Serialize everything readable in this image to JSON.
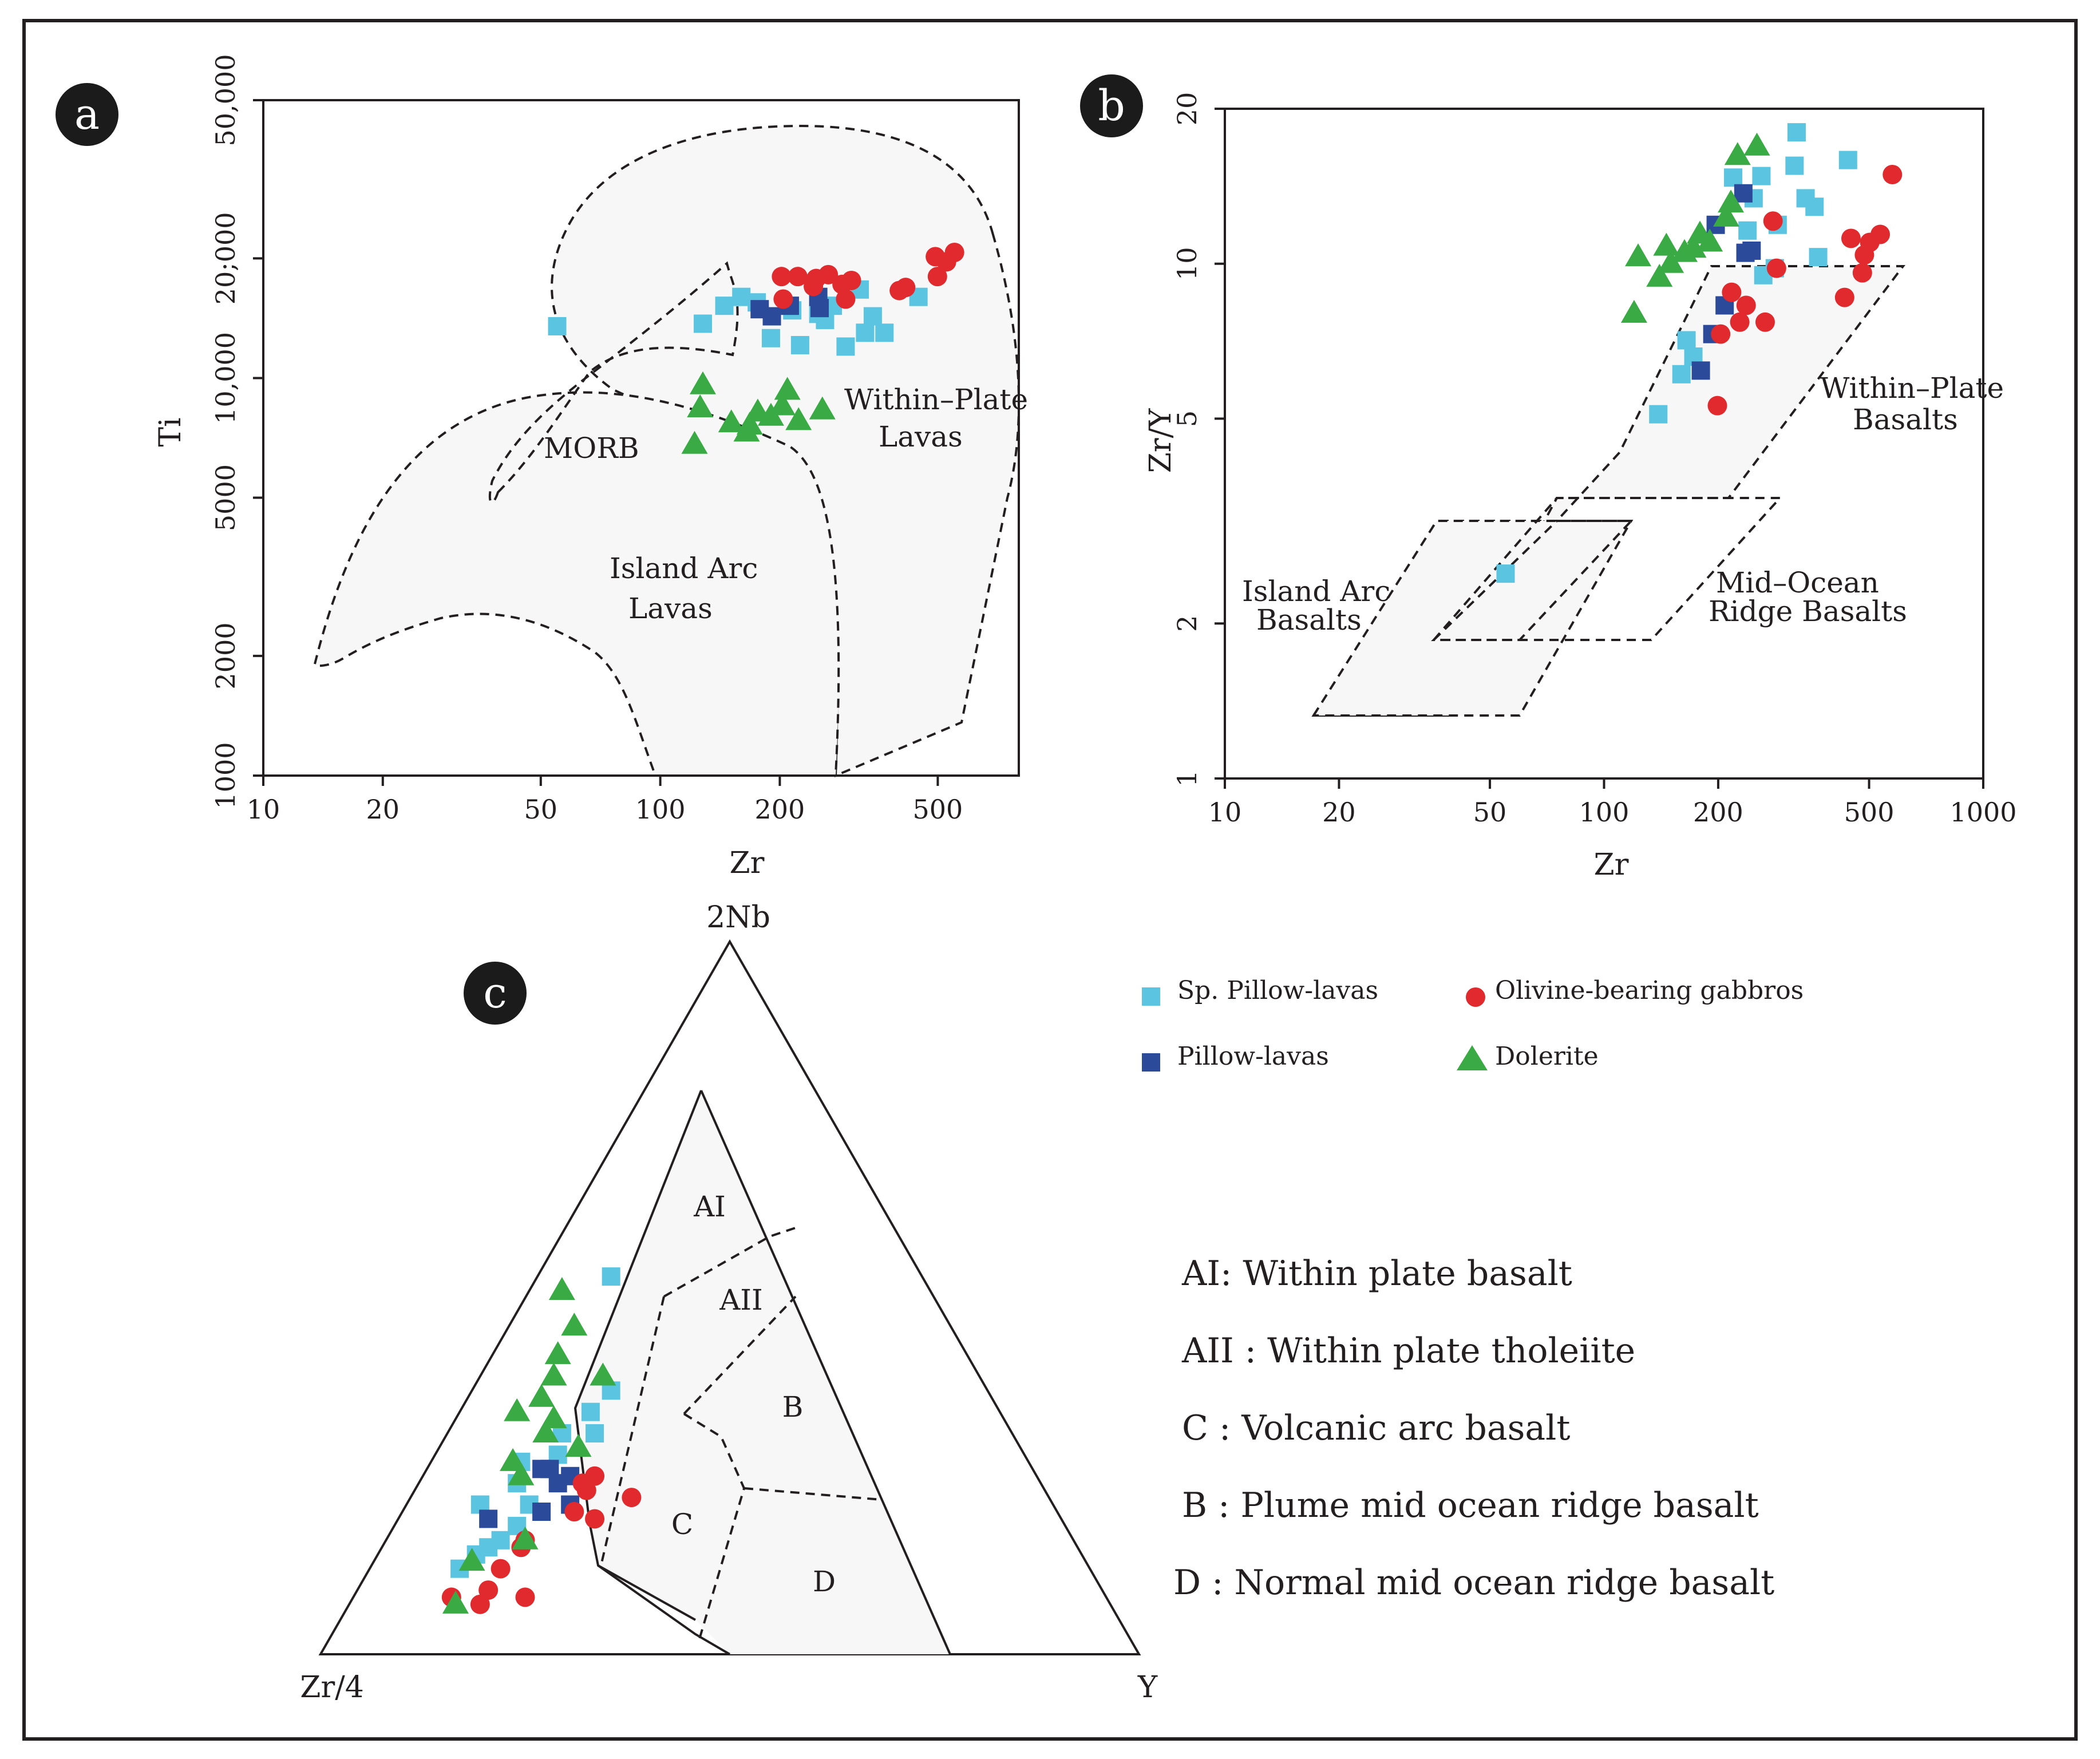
{
  "colors": {
    "sp_pillow": "#5bc4e1",
    "pillow": "#2c4a9a",
    "gabbro": "#e02a2e",
    "dolerite": "#3aaa45",
    "ink": "#231f20",
    "field": "#f7f7f7"
  },
  "chart_data": [
    {
      "type": "scatter",
      "panel": "a",
      "xlabel": "Zr",
      "ylabel": "Ti",
      "xscale": "log",
      "yscale": "log",
      "xlim": [
        10,
        800
      ],
      "ylim": [
        1000,
        50000
      ],
      "xticks": [
        10,
        20,
        50,
        100,
        200,
        500
      ],
      "xtick_labels": [
        "10",
        "20",
        "50",
        "100",
        "200",
        "500"
      ],
      "yticks": [
        1000,
        2000,
        5000,
        10000,
        20000,
        50000
      ],
      "ytick_labels": [
        "1000",
        "2000",
        "5000",
        "10,000",
        "20;000",
        "50,000"
      ],
      "regions": [
        "MORB",
        "Within–Plate",
        "Lavas",
        "Island Arc",
        "Lavas"
      ],
      "series": [
        {
          "name": "Sp. Pillow-lavas",
          "marker": "square",
          "color": "#5bc4e1",
          "x": [
            55,
            128,
            145,
            160,
            190,
            225,
            250,
            272,
            293,
            318,
            328,
            343,
            367,
            447,
            260,
            215,
            175
          ],
          "y": [
            13500,
            13700,
            15200,
            16000,
            12600,
            12100,
            14500,
            15200,
            12000,
            16700,
            13000,
            14300,
            13000,
            16000,
            14000,
            14800,
            15500
          ]
        },
        {
          "name": "Pillow-lavas",
          "marker": "square",
          "color": "#2c4a9a",
          "x": [
            178,
            191,
            212,
            250,
            252
          ],
          "y": [
            14900,
            14300,
            15200,
            16000,
            15000
          ]
        },
        {
          "name": "Olivine-bearing gabbros",
          "marker": "circle",
          "color": "#e02a2e",
          "x": [
            202,
            204,
            222,
            243,
            247,
            265,
            287,
            293,
            303,
            400,
            415,
            493,
            499,
            526,
            551
          ],
          "y": [
            18000,
            15800,
            18000,
            17000,
            17800,
            18200,
            17200,
            15800,
            17600,
            16600,
            16900,
            20200,
            18000,
            19600,
            20700
          ]
        },
        {
          "name": "Dolerite",
          "marker": "triangle",
          "color": "#3aaa45",
          "x": [
            122,
            126,
            128,
            151,
            168,
            176,
            203,
            209,
            223,
            256,
            165,
            190
          ],
          "y": [
            6800,
            8400,
            9600,
            7700,
            7600,
            8200,
            8500,
            9300,
            7800,
            8300,
            7300,
            8000
          ]
        }
      ]
    },
    {
      "type": "scatter",
      "panel": "b",
      "xlabel": "Zr",
      "ylabel": "Zr/Y",
      "xscale": "log",
      "yscale": "log",
      "xlim": [
        10,
        1000
      ],
      "ylim": [
        1,
        20
      ],
      "xticks": [
        10,
        20,
        50,
        100,
        200,
        500,
        1000
      ],
      "xtick_labels": [
        "10",
        "20",
        "50",
        "100",
        "200",
        "500",
        "1000"
      ],
      "yticks": [
        1,
        2,
        5,
        10,
        20
      ],
      "ytick_labels": [
        "1",
        "2",
        "5",
        "10",
        "20"
      ],
      "regions": [
        "Within–Plate",
        "Basalts",
        "Island Arc",
        "Basalts",
        "Mid–Ocean",
        "Ridge Basalts"
      ],
      "series": [
        {
          "name": "Sp. Pillow-lavas",
          "marker": "square",
          "color": "#5bc4e1",
          "x": [
            55,
            139,
            160,
            165,
            172,
            219,
            239,
            248,
            260,
            282,
            287,
            318,
            322,
            340,
            359,
            367,
            440,
            263
          ],
          "y": [
            2.5,
            5.1,
            6.1,
            7.1,
            6.6,
            14.7,
            11.6,
            13.4,
            14.8,
            9.8,
            11.9,
            15.5,
            18.0,
            13.4,
            12.9,
            10.3,
            15.9,
            9.5
          ]
        },
        {
          "name": "Pillow-lavas",
          "marker": "square",
          "color": "#2c4a9a",
          "x": [
            180,
            193,
            197,
            208,
            233,
            236,
            245
          ],
          "y": [
            6.2,
            7.3,
            11.9,
            8.3,
            13.7,
            10.5,
            10.6
          ]
        },
        {
          "name": "Olivine-bearing gabbros",
          "marker": "circle",
          "color": "#e02a2e",
          "x": [
            199,
            203,
            217,
            228,
            237,
            266,
            279,
            285,
            431,
            448,
            480,
            486,
            502,
            535,
            576
          ],
          "y": [
            5.3,
            7.3,
            8.8,
            7.7,
            8.3,
            7.7,
            12.1,
            9.8,
            8.6,
            11.2,
            9.6,
            10.4,
            11.0,
            11.4,
            14.9
          ]
        },
        {
          "name": "Dolerite",
          "marker": "triangle",
          "color": "#3aaa45",
          "x": [
            120,
            123,
            140,
            146,
            150,
            163,
            172,
            179,
            210,
            216,
            225,
            253,
            190
          ],
          "y": [
            8.0,
            10.3,
            9.4,
            10.8,
            10.0,
            10.5,
            10.7,
            11.4,
            12.3,
            13.1,
            16.2,
            16.9,
            11.0
          ]
        }
      ]
    },
    {
      "type": "ternary",
      "panel": "c",
      "vertices": [
        "2Nb",
        "Zr/4",
        "Y"
      ],
      "regions": [
        "AI",
        "AII",
        "B",
        "C",
        "D"
      ],
      "series": [
        {
          "name": "Sp. Pillow-lavas",
          "marker": "square",
          "color": "#5bc4e1",
          "points": [
            [
              0.53,
              0.38,
              0.09
            ],
            [
              0.21,
              0.7,
              0.09
            ],
            [
              0.24,
              0.64,
              0.12
            ],
            [
              0.31,
              0.55,
              0.14
            ],
            [
              0.28,
              0.57,
              0.15
            ],
            [
              0.34,
              0.5,
              0.16
            ],
            [
              0.31,
              0.51,
              0.18
            ],
            [
              0.37,
              0.46,
              0.17
            ],
            [
              0.12,
              0.77,
              0.11
            ],
            [
              0.14,
              0.74,
              0.12
            ],
            [
              0.15,
              0.72,
              0.13
            ],
            [
              0.18,
              0.67,
              0.15
            ],
            [
              0.27,
              0.62,
              0.11
            ],
            [
              0.21,
              0.64,
              0.15
            ],
            [
              0.16,
              0.7,
              0.14
            ]
          ]
        },
        {
          "name": "Pillow-lavas",
          "marker": "square",
          "color": "#2c4a9a",
          "points": [
            [
              0.26,
              0.6,
              0.14
            ],
            [
              0.26,
              0.59,
              0.15
            ],
            [
              0.24,
              0.59,
              0.17
            ],
            [
              0.2,
              0.63,
              0.17
            ],
            [
              0.21,
              0.59,
              0.2
            ],
            [
              0.25,
              0.57,
              0.18
            ],
            [
              0.19,
              0.7,
              0.11
            ]
          ]
        },
        {
          "name": "Olivine-bearing gabbros",
          "marker": "circle",
          "color": "#e02a2e",
          "points": [
            [
              0.08,
              0.8,
              0.12
            ],
            [
              0.09,
              0.75,
              0.16
            ],
            [
              0.07,
              0.77,
              0.16
            ],
            [
              0.08,
              0.71,
              0.21
            ],
            [
              0.15,
              0.68,
              0.17
            ],
            [
              0.12,
              0.72,
              0.16
            ],
            [
              0.16,
              0.67,
              0.17
            ],
            [
              0.19,
              0.57,
              0.24
            ],
            [
              0.2,
              0.59,
              0.21
            ],
            [
              0.23,
              0.56,
              0.21
            ],
            [
              0.24,
              0.56,
              0.2
            ],
            [
              0.25,
              0.54,
              0.21
            ],
            [
              0.22,
              0.51,
              0.27
            ]
          ]
        },
        {
          "name": "Dolerite",
          "marker": "triangle",
          "color": "#3aaa45",
          "points": [
            [
              0.51,
              0.45,
              0.04
            ],
            [
              0.46,
              0.46,
              0.08
            ],
            [
              0.42,
              0.5,
              0.08
            ],
            [
              0.39,
              0.52,
              0.09
            ],
            [
              0.39,
              0.46,
              0.15
            ],
            [
              0.36,
              0.55,
              0.09
            ],
            [
              0.34,
              0.59,
              0.07
            ],
            [
              0.31,
              0.57,
              0.12
            ],
            [
              0.27,
              0.63,
              0.1
            ],
            [
              0.25,
              0.63,
              0.12
            ],
            [
              0.29,
              0.54,
              0.17
            ],
            [
              0.07,
              0.8,
              0.13
            ],
            [
              0.13,
              0.75,
              0.12
            ],
            [
              0.16,
              0.67,
              0.17
            ],
            [
              0.33,
              0.55,
              0.12
            ]
          ]
        }
      ]
    }
  ],
  "panel_labels": {
    "a": "a",
    "b": "b",
    "c": "c"
  },
  "legend": [
    {
      "label": "Sp. Pillow-lavas",
      "marker": "square",
      "color": "#5bc4e1"
    },
    {
      "label": "Olivine-bearing gabbros",
      "marker": "circle",
      "color": "#e02a2e"
    },
    {
      "label": "Pillow-lavas",
      "marker": "square",
      "color": "#2c4a9a"
    },
    {
      "label": "Dolerite",
      "marker": "triangle",
      "color": "#3aaa45"
    }
  ],
  "definitions": [
    "AI: Within plate basalt",
    "AII : Within plate tholeiite",
    "C : Volcanic arc basalt",
    "B : Plume mid ocean ridge basalt",
    "D : Normal mid ocean ridge basalt"
  ]
}
